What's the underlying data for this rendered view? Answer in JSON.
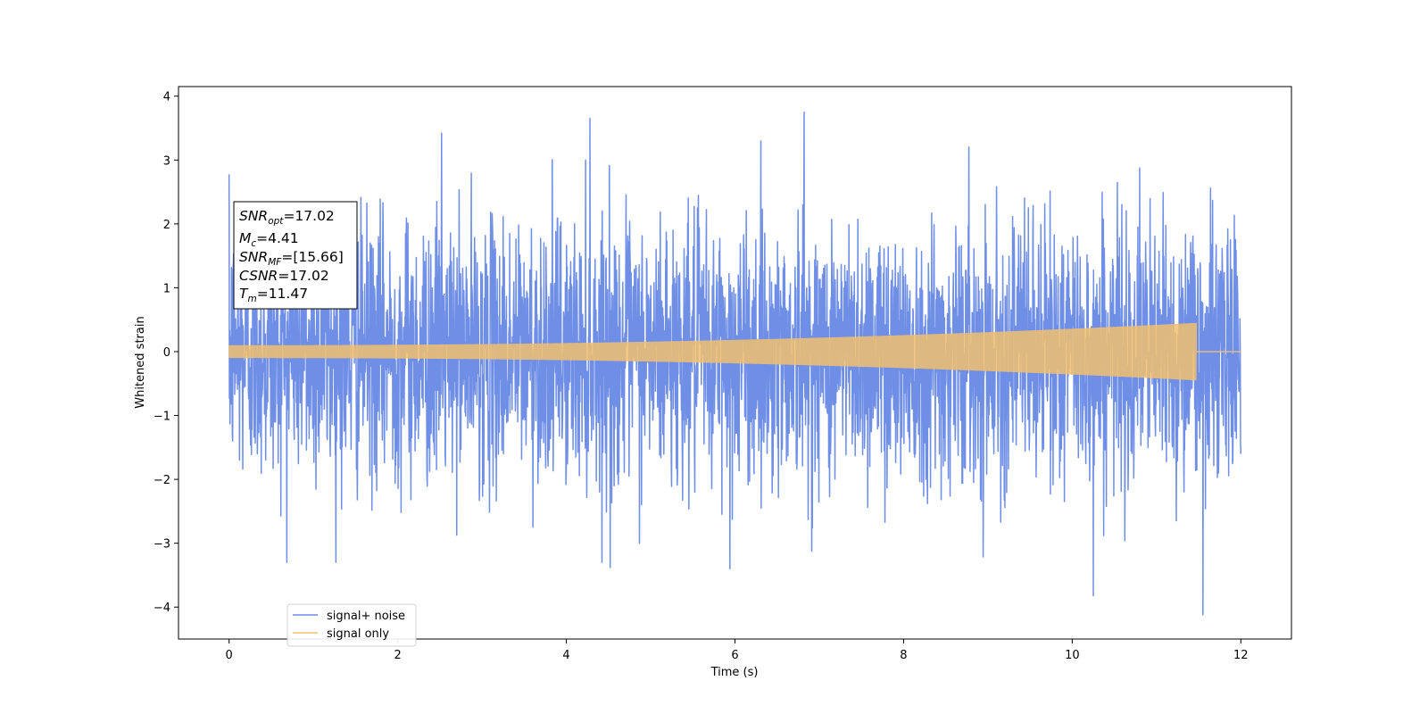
{
  "chart_data": {
    "type": "line",
    "xlabel": "Time (s)",
    "ylabel": "Whitened strain",
    "xlim": [
      -0.6,
      12.6
    ],
    "ylim": [
      -4.5,
      4.15
    ],
    "xticks": [
      0,
      2,
      4,
      6,
      8,
      10,
      12
    ],
    "yticks": [
      4,
      3,
      2,
      1,
      0,
      -1,
      -2,
      -3,
      -4
    ],
    "xtick_labels": [
      "0",
      "2",
      "4",
      "6",
      "8",
      "10",
      "12"
    ],
    "ytick_labels": [
      "4",
      "3",
      "2",
      "1",
      "0",
      "−1",
      "−2",
      "−3",
      "−4"
    ],
    "grid": false,
    "legend_position": "lower-left",
    "series": [
      {
        "name": "signal+ noise",
        "color": "#6f8ee6",
        "x_range": [
          0,
          12
        ],
        "noise_std": 1.0,
        "notable_peaks": [
          {
            "x": 6.82,
            "y": 3.75
          },
          {
            "x": 4.28,
            "y": 3.65
          },
          {
            "x": 2.52,
            "y": 3.42
          },
          {
            "x": 11.55,
            "y": -4.12
          },
          {
            "x": 10.25,
            "y": -3.82
          },
          {
            "x": 5.94,
            "y": -3.4
          },
          {
            "x": 4.52,
            "y": -3.38
          }
        ]
      },
      {
        "name": "signal only",
        "color": "#f2c06e",
        "x_range": [
          0,
          11.47
        ],
        "amplitude_start": 0.1,
        "amplitude_end": 0.45,
        "after_merger_value": 0.0
      }
    ],
    "annotation": {
      "lines": [
        {
          "base": "SNR",
          "sub": "opt",
          "value": "=17.02"
        },
        {
          "base": "M",
          "sub": "c",
          "value": "=4.41"
        },
        {
          "base": "SNR",
          "sub": "MF",
          "value": "=[15.66]"
        },
        {
          "base": "CSNR",
          "sub": "",
          "value": "=17.02"
        },
        {
          "base": "T",
          "sub": "m",
          "value": "=11.47"
        }
      ]
    }
  }
}
